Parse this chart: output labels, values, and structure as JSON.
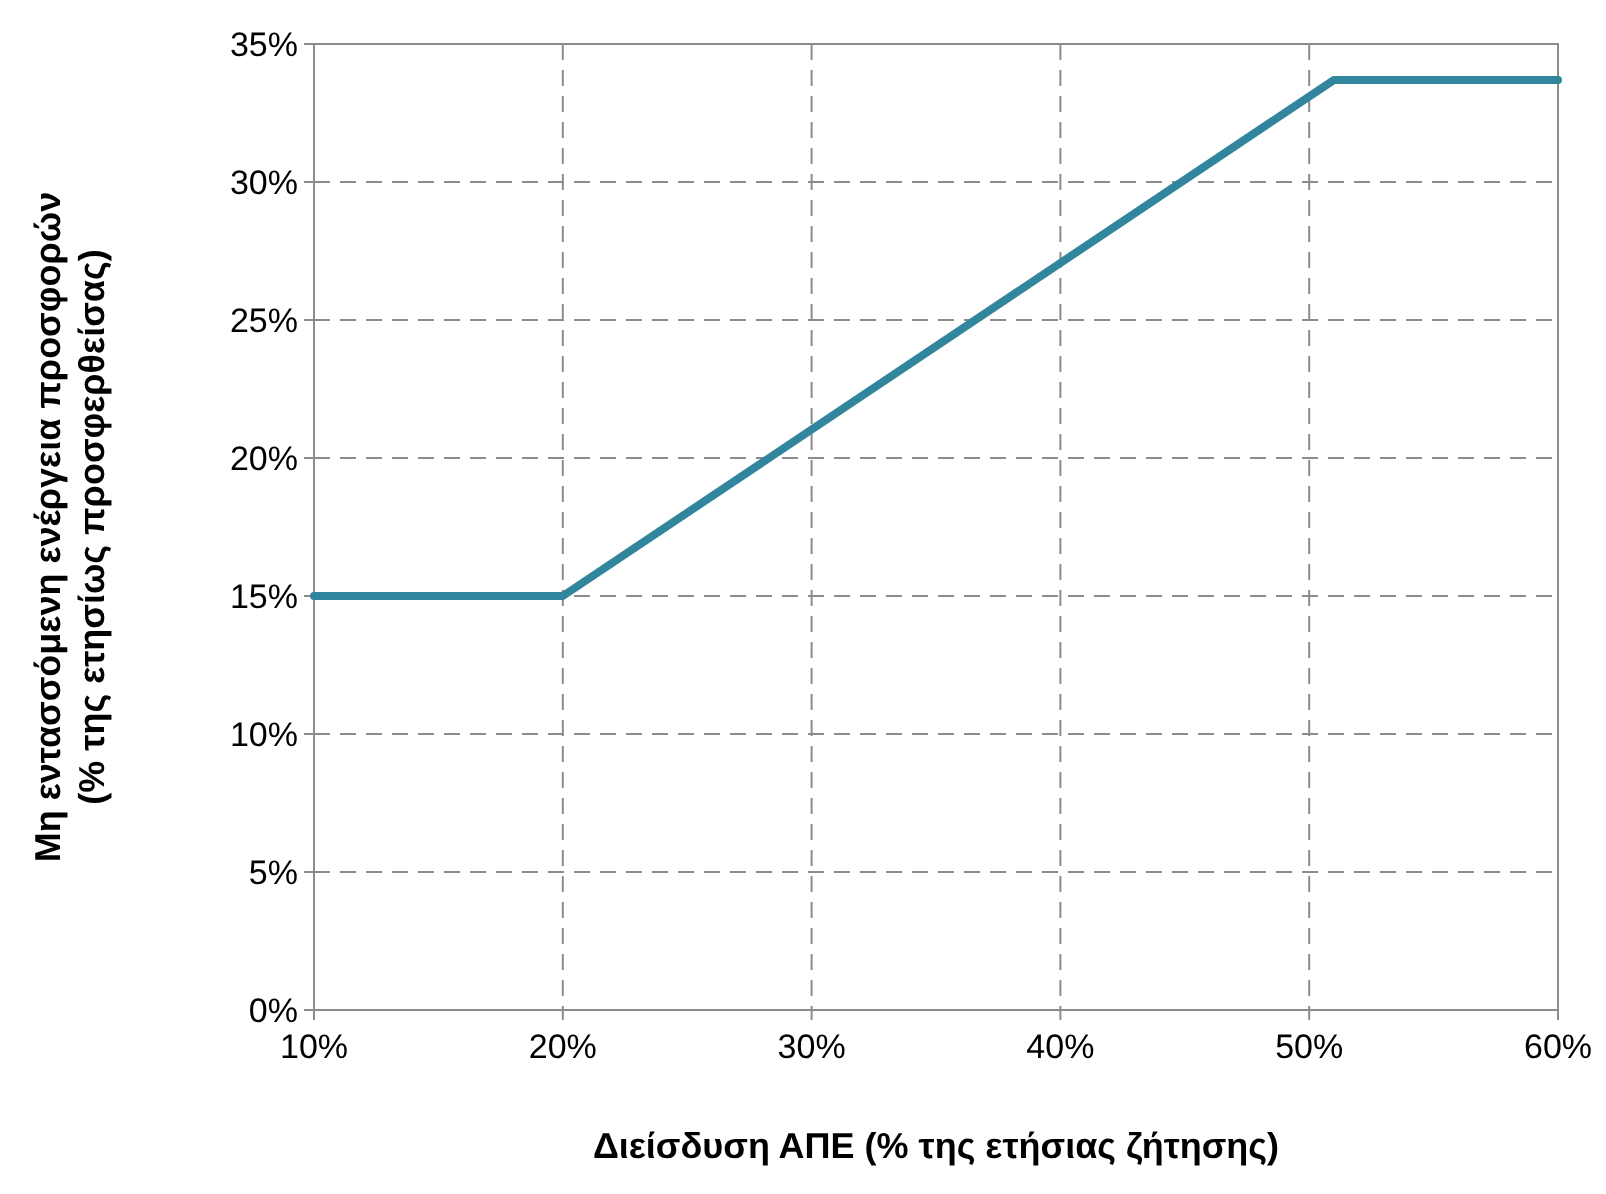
{
  "chart_data": {
    "type": "line",
    "xlabel": "Διείσδυση ΑΠΕ (% της ετήσιας ζήτησης)",
    "ylabel": "Μη εντασσόμενη ενέργεια προσφορών\n(% της ετησίως προσφερθείσας)",
    "x": [
      10,
      20,
      51,
      60
    ],
    "series": [
      {
        "color": "#31859c",
        "values": [
          15,
          15,
          33.7,
          33.7
        ]
      }
    ],
    "xlim": [
      10,
      60
    ],
    "xticks": [
      {
        "value": 10,
        "label": "10%"
      },
      {
        "value": 20,
        "label": "20%"
      },
      {
        "value": 30,
        "label": "30%"
      },
      {
        "value": 40,
        "label": "40%"
      },
      {
        "value": 50,
        "label": "50%"
      },
      {
        "value": 60,
        "label": "60%"
      }
    ],
    "ylim": [
      0,
      35
    ],
    "yticks": [
      {
        "value": 0,
        "label": "0%"
      },
      {
        "value": 5,
        "label": "5%"
      },
      {
        "value": 10,
        "label": "10%"
      },
      {
        "value": 15,
        "label": "15%"
      },
      {
        "value": 20,
        "label": "20%"
      },
      {
        "value": 25,
        "label": "25%"
      },
      {
        "value": 30,
        "label": "30%"
      },
      {
        "value": 35,
        "label": "35%"
      }
    ],
    "grid": true,
    "line_style": "solid",
    "marker": "none"
  }
}
